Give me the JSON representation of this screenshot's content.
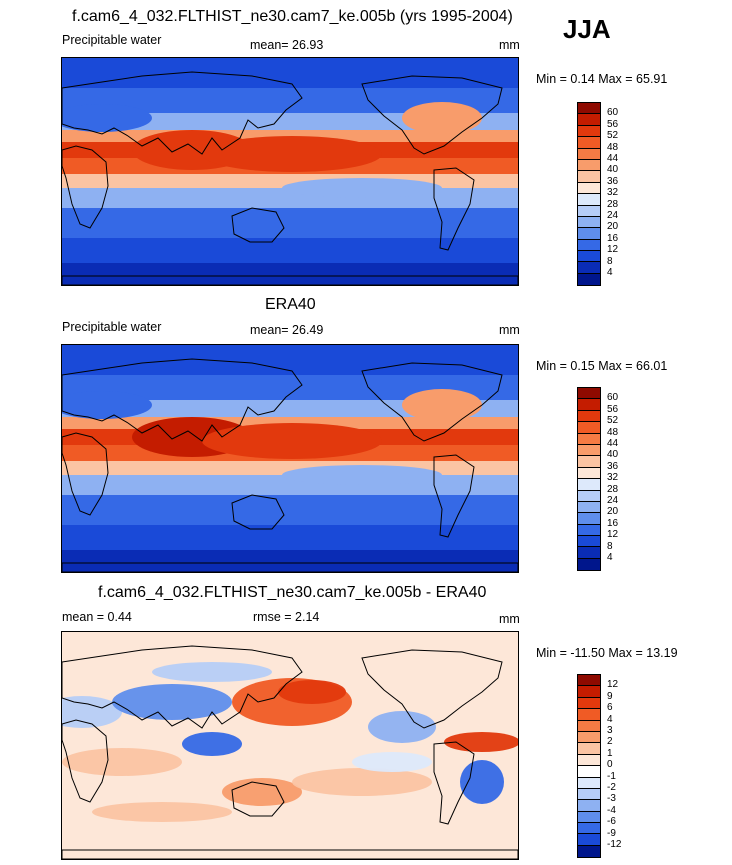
{
  "season": "JJA",
  "panels": [
    {
      "title": "f.cam6_4_032.FLTHIST_ne30.cam7_ke.005b (yrs 1995-2004)",
      "left_label": "Precipitable water",
      "stat_label": "mean=  26.93",
      "units": "mm",
      "minmax": "Min =   0.14 Max =   65.91",
      "colorbar": {
        "labels": [
          "60",
          "56",
          "52",
          "48",
          "44",
          "40",
          "36",
          "32",
          "28",
          "24",
          "20",
          "16",
          "12",
          "8",
          "4"
        ],
        "colors": [
          "#8e0a00",
          "#c41c00",
          "#e2390d",
          "#f05b25",
          "#f57b44",
          "#f89c6b",
          "#fbc4a3",
          "#fde7d8",
          "#dde9fb",
          "#b6cdf7",
          "#8eb1f2",
          "#5f8eec",
          "#3569e6",
          "#1a4ad8",
          "#0a2cb5",
          "#00168c"
        ]
      },
      "map_kind": "pw_model"
    },
    {
      "title": "ERA40",
      "left_label": "Precipitable water",
      "stat_label": "mean=  26.49",
      "units": "mm",
      "minmax": "Min =   0.15 Max =   66.01",
      "colorbar": {
        "labels": [
          "60",
          "56",
          "52",
          "48",
          "44",
          "40",
          "36",
          "32",
          "28",
          "24",
          "20",
          "16",
          "12",
          "8",
          "4"
        ],
        "colors": [
          "#8e0a00",
          "#c41c00",
          "#e2390d",
          "#f05b25",
          "#f57b44",
          "#f89c6b",
          "#fbc4a3",
          "#fde7d8",
          "#dde9fb",
          "#b6cdf7",
          "#8eb1f2",
          "#5f8eec",
          "#3569e6",
          "#1a4ad8",
          "#0a2cb5",
          "#00168c"
        ]
      },
      "map_kind": "pw_obs"
    },
    {
      "title": "f.cam6_4_032.FLTHIST_ne30.cam7_ke.005b - ERA40",
      "left_label": "mean =    0.44",
      "stat_label": "rmse =    2.14",
      "units": "mm",
      "minmax": "Min = -11.50 Max =   13.19",
      "colorbar": {
        "labels": [
          "12",
          "9",
          "6",
          "4",
          "3",
          "2",
          "1",
          "0",
          "-1",
          "-2",
          "-3",
          "-4",
          "-6",
          "-9",
          "-12"
        ],
        "colors": [
          "#8e0a00",
          "#c41c00",
          "#e2390d",
          "#f05b25",
          "#f57b44",
          "#f89c6b",
          "#fbc4a3",
          "#fde7d8",
          "#ffffff",
          "#dde9fb",
          "#b6cdf7",
          "#8eb1f2",
          "#5f8eec",
          "#3569e6",
          "#1a4ad8",
          "#00168c"
        ]
      },
      "map_kind": "diff"
    }
  ]
}
